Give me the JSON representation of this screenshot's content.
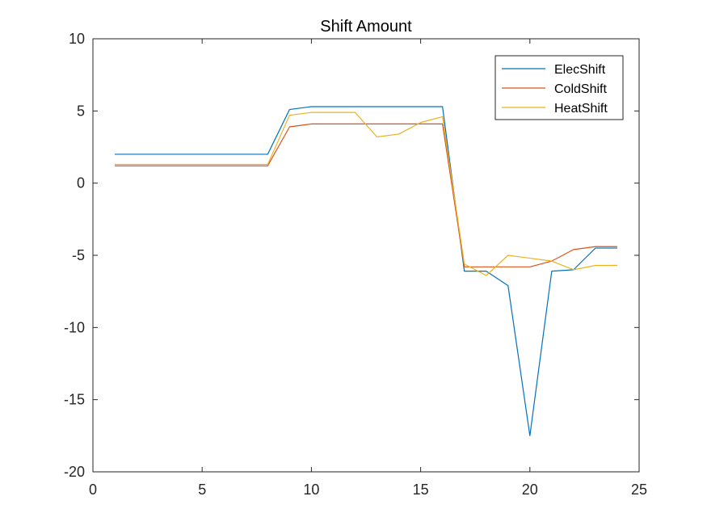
{
  "chart_data": {
    "type": "line",
    "title": "Shift Amount",
    "xlabel": "",
    "ylabel": "",
    "xlim": [
      0,
      25
    ],
    "ylim": [
      -20,
      10
    ],
    "xticks": [
      "0",
      "5",
      "10",
      "15",
      "20",
      "25"
    ],
    "yticks": [
      "10",
      "5",
      "0",
      "-5",
      "-10",
      "-15",
      "-20"
    ],
    "grid": false,
    "legend_position": "top-right",
    "x": [
      1,
      2,
      3,
      4,
      5,
      6,
      7,
      8,
      9,
      10,
      11,
      12,
      13,
      14,
      15,
      16,
      17,
      18,
      19,
      20,
      21,
      22,
      23,
      24
    ],
    "series": [
      {
        "name": "ElecShift",
        "color": "#0072BD",
        "values": [
          2,
          2,
          2,
          2,
          2,
          2,
          2,
          2,
          5.1,
          5.3,
          5.3,
          5.3,
          5.3,
          5.3,
          5.3,
          5.3,
          -6.1,
          -6.1,
          -7.1,
          -17.5,
          -6.1,
          -6.0,
          -4.5,
          -4.5
        ]
      },
      {
        "name": "ColdShift",
        "color": "#D95319",
        "values": [
          1.2,
          1.2,
          1.2,
          1.2,
          1.2,
          1.2,
          1.2,
          1.2,
          3.9,
          4.1,
          4.1,
          4.1,
          4.1,
          4.1,
          4.1,
          4.1,
          -5.8,
          -5.8,
          -5.8,
          -5.8,
          -5.4,
          -4.6,
          -4.4,
          -4.4
        ]
      },
      {
        "name": "HeatShift",
        "color": "#EDB120",
        "values": [
          1.3,
          1.3,
          1.3,
          1.3,
          1.3,
          1.3,
          1.3,
          1.3,
          4.7,
          4.9,
          4.9,
          4.9,
          3.2,
          3.4,
          4.2,
          4.6,
          -5.6,
          -6.4,
          -5.0,
          -5.2,
          -5.4,
          -6.0,
          -5.7,
          -5.7
        ]
      }
    ]
  }
}
